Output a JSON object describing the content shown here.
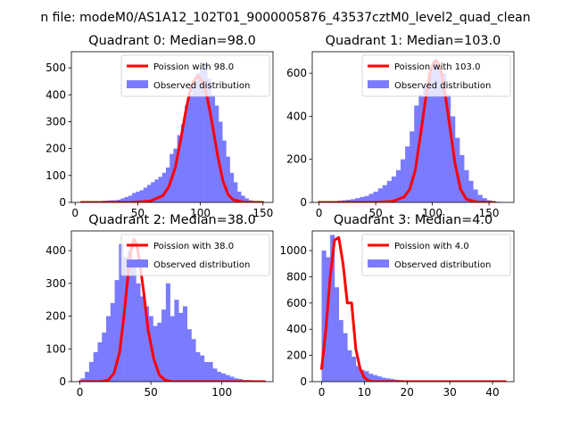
{
  "figure_title": "n file: modeM0/AS1A12_102T01_9000005876_43537cztM0_level2_quad_clean",
  "colors": {
    "poisson": "#ff0000",
    "observed": "#7b7bff"
  },
  "chart_data": [
    {
      "type": "bar",
      "title": "Quadrant 0: Median=98.0",
      "xlim": [
        -3,
        158
      ],
      "ylim": [
        0,
        560
      ],
      "xticks": [
        0,
        50,
        100,
        150
      ],
      "yticks": [
        0,
        100,
        200,
        300,
        400,
        500
      ],
      "legend": {
        "position": "top-right",
        "entries": [
          "Poission with 98.0",
          "Observed distribution"
        ]
      },
      "observed": {
        "name": "Observed distribution",
        "x": [
          20,
          23,
          26,
          29,
          32,
          35,
          38,
          41,
          44,
          47,
          50,
          53,
          56,
          59,
          62,
          65,
          68,
          71,
          74,
          77,
          80,
          83,
          86,
          89,
          92,
          95,
          98,
          101,
          104,
          107,
          110,
          113,
          116,
          119,
          122,
          125,
          128,
          131,
          134,
          137,
          140,
          143,
          146,
          149
        ],
        "values": [
          5,
          6,
          7,
          8,
          8,
          10,
          15,
          20,
          25,
          35,
          40,
          45,
          55,
          65,
          75,
          85,
          95,
          110,
          130,
          180,
          200,
          250,
          290,
          360,
          400,
          430,
          480,
          500,
          520,
          460,
          400,
          360,
          300,
          230,
          170,
          110,
          75,
          40,
          25,
          15,
          8,
          5,
          3,
          2
        ]
      },
      "poisson": {
        "name": "Poission with 98.0",
        "x": [
          5,
          45,
          60,
          70,
          75,
          80,
          85,
          88,
          91,
          94,
          96,
          98,
          100,
          102,
          105,
          108,
          111,
          114,
          118,
          122,
          126,
          135,
          150
        ],
        "values": [
          0,
          0,
          5,
          25,
          60,
          130,
          250,
          330,
          400,
          445,
          460,
          470,
          460,
          445,
          400,
          330,
          250,
          170,
          80,
          30,
          10,
          1,
          0
        ]
      }
    },
    {
      "type": "bar",
      "title": "Quadrant 1: Median=103.0",
      "xlim": [
        -6,
        172
      ],
      "ylim": [
        0,
        700
      ],
      "xticks": [
        0,
        50,
        100,
        150
      ],
      "yticks": [
        0,
        200,
        400,
        600
      ],
      "legend": {
        "position": "top-right",
        "entries": [
          "Poission with 103.0",
          "Observed distribution"
        ]
      },
      "observed": {
        "name": "Observed distribution",
        "x": [
          10,
          14,
          18,
          22,
          26,
          30,
          34,
          38,
          42,
          46,
          50,
          54,
          58,
          62,
          66,
          70,
          74,
          78,
          82,
          86,
          90,
          94,
          98,
          102,
          106,
          110,
          114,
          118,
          122,
          126,
          130,
          134,
          138,
          142,
          146,
          150,
          154,
          158
        ],
        "values": [
          5,
          5,
          8,
          10,
          12,
          15,
          20,
          25,
          30,
          40,
          50,
          65,
          80,
          100,
          120,
          150,
          200,
          260,
          330,
          450,
          500,
          540,
          600,
          650,
          620,
          600,
          500,
          400,
          300,
          220,
          150,
          100,
          60,
          35,
          20,
          10,
          5,
          3
        ]
      },
      "poisson": {
        "name": "Poission with 103.0",
        "x": [
          0,
          50,
          65,
          75,
          80,
          85,
          90,
          94,
          98,
          101,
          103,
          105,
          108,
          112,
          116,
          120,
          125,
          130,
          140,
          155
        ],
        "values": [
          0,
          0,
          5,
          25,
          60,
          150,
          330,
          480,
          600,
          650,
          660,
          650,
          600,
          480,
          330,
          180,
          60,
          15,
          1,
          0
        ]
      }
    },
    {
      "type": "bar",
      "title": "Quadrant 2: Median=38.0",
      "xlim": [
        -6,
        136
      ],
      "ylim": [
        0,
        460
      ],
      "xticks": [
        0,
        50,
        100
      ],
      "yticks": [
        0,
        100,
        200,
        300,
        400
      ],
      "legend": {
        "position": "top-right",
        "entries": [
          "Poission with 38.0",
          "Observed distribution"
        ]
      },
      "observed": {
        "name": "Observed distribution",
        "x": [
          2,
          5,
          8,
          11,
          14,
          17,
          20,
          23,
          26,
          29,
          32,
          35,
          38,
          41,
          44,
          47,
          50,
          53,
          56,
          59,
          62,
          65,
          68,
          71,
          74,
          77,
          80,
          83,
          86,
          89,
          92,
          95,
          98,
          101,
          104,
          107,
          110,
          113,
          116,
          119,
          122,
          125,
          128
        ],
        "values": [
          10,
          30,
          60,
          90,
          120,
          150,
          200,
          240,
          310,
          420,
          380,
          400,
          370,
          300,
          260,
          230,
          200,
          170,
          180,
          220,
          300,
          200,
          250,
          210,
          230,
          160,
          130,
          90,
          80,
          60,
          60,
          40,
          30,
          25,
          20,
          15,
          10,
          8,
          5,
          5,
          3,
          2,
          2
        ]
      },
      "poisson": {
        "name": "Poission with 38.0",
        "x": [
          0,
          15,
          20,
          24,
          28,
          31,
          34,
          36,
          38,
          40,
          42,
          45,
          48,
          52,
          56,
          60,
          65,
          130
        ],
        "values": [
          0,
          0,
          5,
          25,
          90,
          200,
          330,
          400,
          435,
          420,
          370,
          270,
          160,
          70,
          20,
          5,
          0,
          0
        ]
      }
    },
    {
      "type": "bar",
      "title": "Quadrant 3: Median=4.0",
      "xlim": [
        -2.2,
        45
      ],
      "ylim": [
        0,
        1150
      ],
      "xticks": [
        0,
        10,
        20,
        30,
        40
      ],
      "yticks": [
        0,
        200,
        400,
        600,
        800,
        1000
      ],
      "legend": {
        "position": "top-right",
        "entries": [
          "Poission with 4.0",
          "Observed distribution"
        ]
      },
      "observed": {
        "name": "Observed distribution",
        "x": [
          0.5,
          1.5,
          2.5,
          3.5,
          4.5,
          5.5,
          6.5,
          7.5,
          8.5,
          9.5,
          10.5,
          11.5,
          12.5,
          13.5,
          14.5,
          15.5,
          16.5,
          17.5,
          18.5,
          19.5,
          20.5,
          21.5,
          22.5,
          23.5,
          24.5,
          25.5,
          26.5,
          27.5,
          28.5,
          29.5
        ],
        "values": [
          1000,
          950,
          1120,
          720,
          470,
          370,
          240,
          190,
          120,
          90,
          80,
          60,
          50,
          40,
          30,
          25,
          20,
          15,
          12,
          10,
          8,
          6,
          5,
          4,
          3,
          3,
          2,
          2,
          1,
          1
        ]
      },
      "poisson": {
        "name": "Poission with 4.0",
        "x": [
          0,
          1,
          2,
          3,
          4,
          5,
          6,
          7,
          8,
          9,
          10,
          11,
          12,
          43
        ],
        "values": [
          100,
          400,
          800,
          1080,
          1100,
          900,
          600,
          600,
          250,
          100,
          30,
          8,
          0,
          0
        ]
      }
    }
  ]
}
